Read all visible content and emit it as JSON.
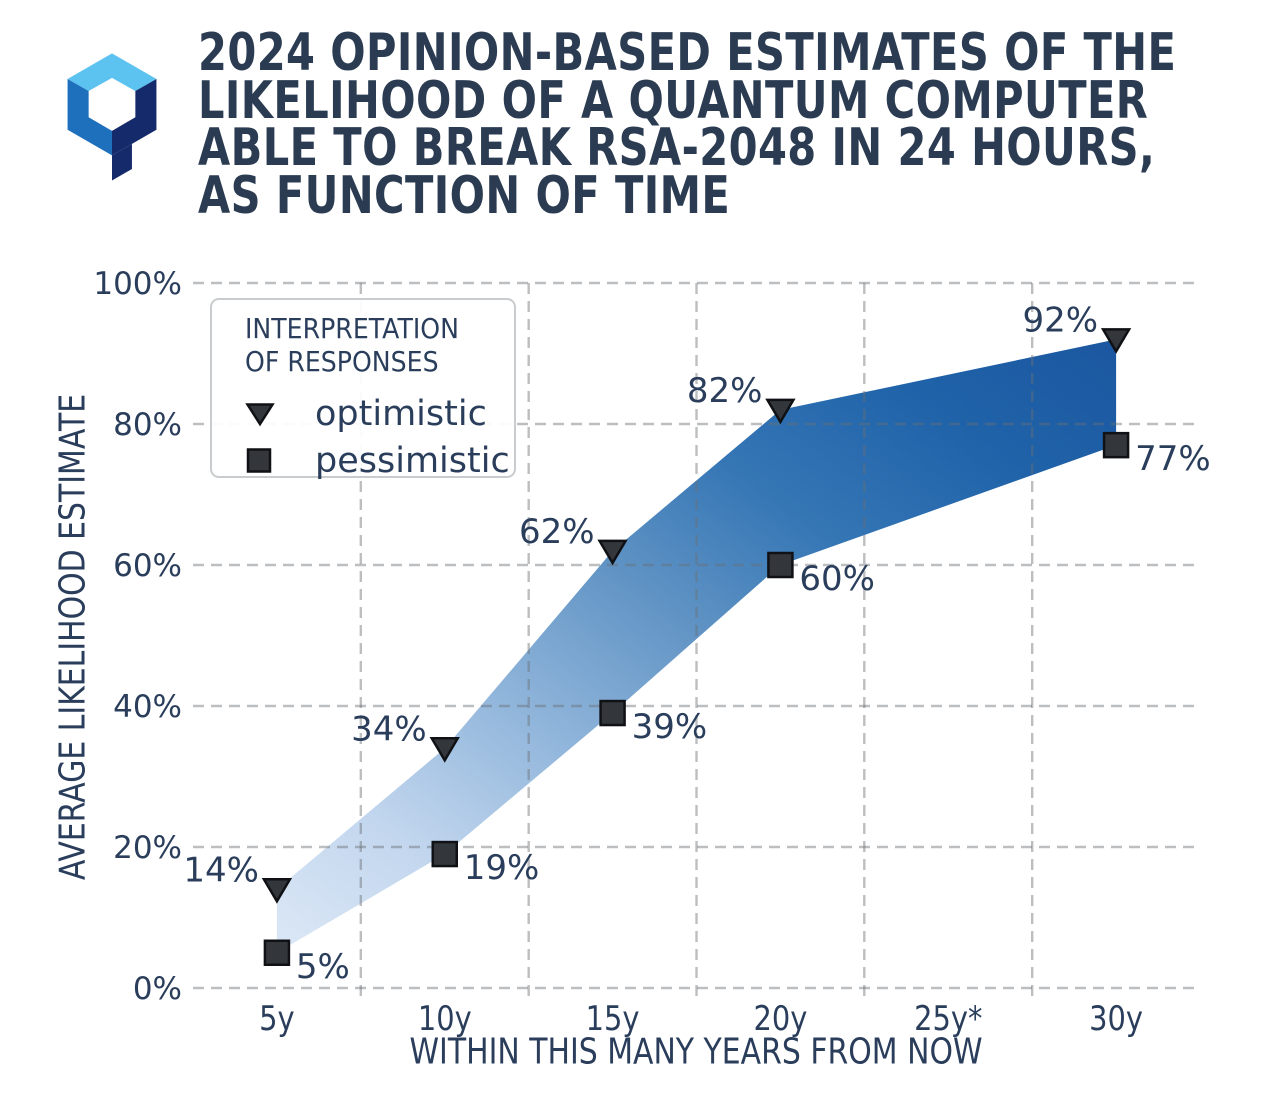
{
  "header": {
    "logo": {
      "name": "hexagon-q-logo",
      "colors": {
        "light_blue": "#5CC2F0",
        "royal_blue": "#1F70BC",
        "dark_navy": "#152A6B"
      }
    },
    "title_lines": [
      "2024 OPINION-BASED ESTIMATES OF THE",
      "LIKELIHOOD OF A QUANTUM COMPUTER",
      "ABLE TO BREAK RSA-2048 IN 24 HOURS,",
      "AS FUNCTION OF TIME"
    ],
    "title_color": "#2B3C52"
  },
  "legend": {
    "title_lines": [
      "INTERPRETATION",
      "OF RESPONSES"
    ],
    "items": [
      {
        "marker": "triangle-down",
        "label": "optimistic"
      },
      {
        "marker": "square",
        "label": "pessimistic"
      }
    ]
  },
  "chart_data": {
    "type": "area",
    "title": "2024 opinion-based estimates of the likelihood of a quantum computer able to break RSA-2048 in 24 hours, as function of time",
    "xlabel": "WITHIN THIS MANY YEARS FROM NOW",
    "ylabel": "AVERAGE LIKELIHOOD ESTIMATE",
    "x_categories": [
      "5y",
      "10y",
      "15y",
      "20y",
      "25y*",
      "30y"
    ],
    "y_ticks": [
      "0%",
      "20%",
      "40%",
      "60%",
      "80%",
      "100%"
    ],
    "y_tick_values": [
      0,
      20,
      40,
      60,
      80,
      100
    ],
    "ylim": [
      0,
      100
    ],
    "grid": "dashed gray; horizontal lines at y ticks, vertical lines between category slots, drawn semi-transparent over the band",
    "legend_position": "upper left",
    "series": [
      {
        "name": "optimistic",
        "marker": "triangle-down",
        "x_index": [
          0,
          1,
          2,
          3,
          5
        ],
        "x": [
          "5y",
          "10y",
          "15y",
          "20y",
          "30y"
        ],
        "values": [
          14,
          34,
          62,
          82,
          92
        ],
        "labels": [
          "14%",
          "34%",
          "62%",
          "82%",
          "92%"
        ],
        "label_side": "left-above"
      },
      {
        "name": "pessimistic",
        "marker": "square",
        "x_index": [
          0,
          1,
          2,
          3,
          5
        ],
        "x": [
          "5y",
          "10y",
          "15y",
          "20y",
          "30y"
        ],
        "values": [
          5,
          19,
          39,
          60,
          77
        ],
        "labels": [
          "5%",
          "19%",
          "39%",
          "60%",
          "77%"
        ],
        "label_side": "right-below"
      }
    ],
    "note": "no data point at 25y (asterisk on tick label); band connects 20y directly to 30y",
    "band_fill_gradient": [
      "#DCE8F6",
      "#C2D6EE",
      "#93B7DC",
      "#6496C6",
      "#3576B5",
      "#2063A9",
      "#1B57A0"
    ],
    "marker_fill": "#33373C",
    "marker_edge": "#0F1114",
    "text_color": "#2A3E5C",
    "gridline_color": "#BDBDBD"
  }
}
